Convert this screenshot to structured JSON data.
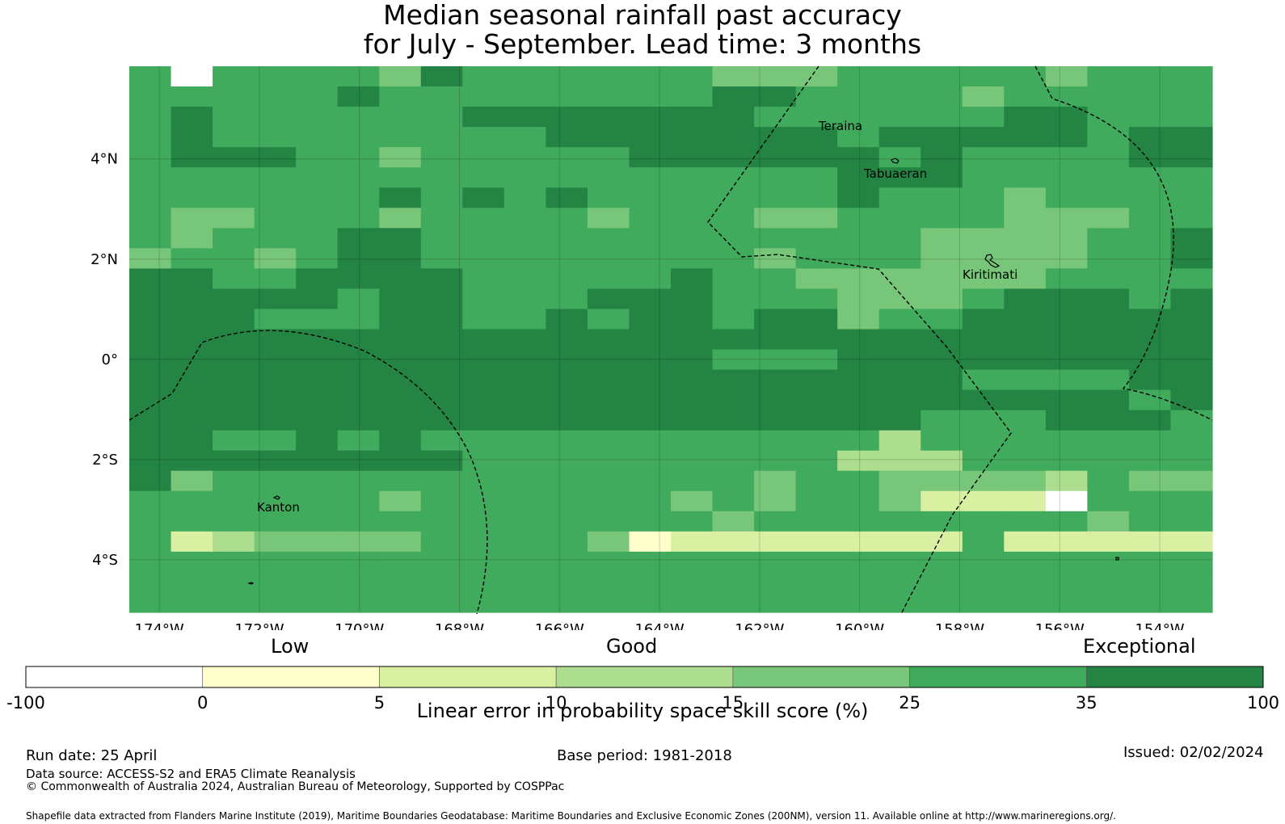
{
  "title": {
    "line1": "Median seasonal rainfall past accuracy",
    "line2": "for July - September. Lead time: 3 months"
  },
  "map": {
    "lon_range": [
      -174.6,
      -152.95
    ],
    "lat_range": [
      -5.05,
      5.85
    ],
    "x_ticks": [
      "174°W",
      "172°W",
      "170°W",
      "168°W",
      "166°W",
      "164°W",
      "162°W",
      "160°W",
      "158°W",
      "156°W",
      "154°W"
    ],
    "y_ticks": [
      "4°N",
      "2°N",
      "0°",
      "2°S",
      "4°S"
    ],
    "places": [
      "Teraina",
      "Tabuaeran",
      "Kiritimati",
      "Kanton"
    ]
  },
  "categories": {
    "low": "Low",
    "good": "Good",
    "exceptional": "Exceptional"
  },
  "colorbar": {
    "ticks": [
      "-100",
      "0",
      "5",
      "10",
      "15",
      "25",
      "35",
      "100"
    ],
    "colors": [
      "#ffffff",
      "#ffffcc",
      "#d9f0a3",
      "#addd8e",
      "#78c679",
      "#41ab5d",
      "#238443"
    ],
    "label": "Linear error in probability space skill score (%)"
  },
  "footer": {
    "run_date": "Run date: 25 April",
    "base_period": "Base period: 1981-2018",
    "issued": "Issued: 02/02/2024",
    "data_source": "Data source: ACCESS-S2 and ERA5 Climate Reanalysis",
    "copyright": "© Commonwealth of Australia 2024, Australian Bureau of Meteorology, Supported by COSPPac",
    "shapefile": "Shapefile data extracted from Flanders Marine Institute (2019), Maritime Boundaries Geodatabase: Maritime Boundaries and Exclusive Economic Zones (200NM), version 11. Available online at http://www.marineregions.org/."
  },
  "grid_levels": [
    "50555546555555444555554555",
    "55555655555555665555455555",
    "56555555666666655555566555",
    "56555555556666666566666566",
    "56665545555566666656555566",
    "55555555555555555666555555",
    "55555565656555555655545555",
    "54455545555455544555544455",
    "54555665555555555554444556",
    "45545665555555545554444556",
    "66556666555556554444445555",
    "66666566555666555444566656",
    "66655566556566566455666666",
    "66666666666666666666666666",
    "66666666666666555666666666",
    "66666666666666666666555566",
    "66666666666666666666666656",
    "66666666666666666665556665",
    "66556565555555555535555555",
    "66666666555555555333555555",
    "64555555555555545544443544",
    "55555545555554545542220555",
    "55555555555555455555555455",
    "52344445555412222222522222",
    "55555555555555555555555555",
    "55555555555555555555555555",
    "55555555555555555555555555"
  ]
}
